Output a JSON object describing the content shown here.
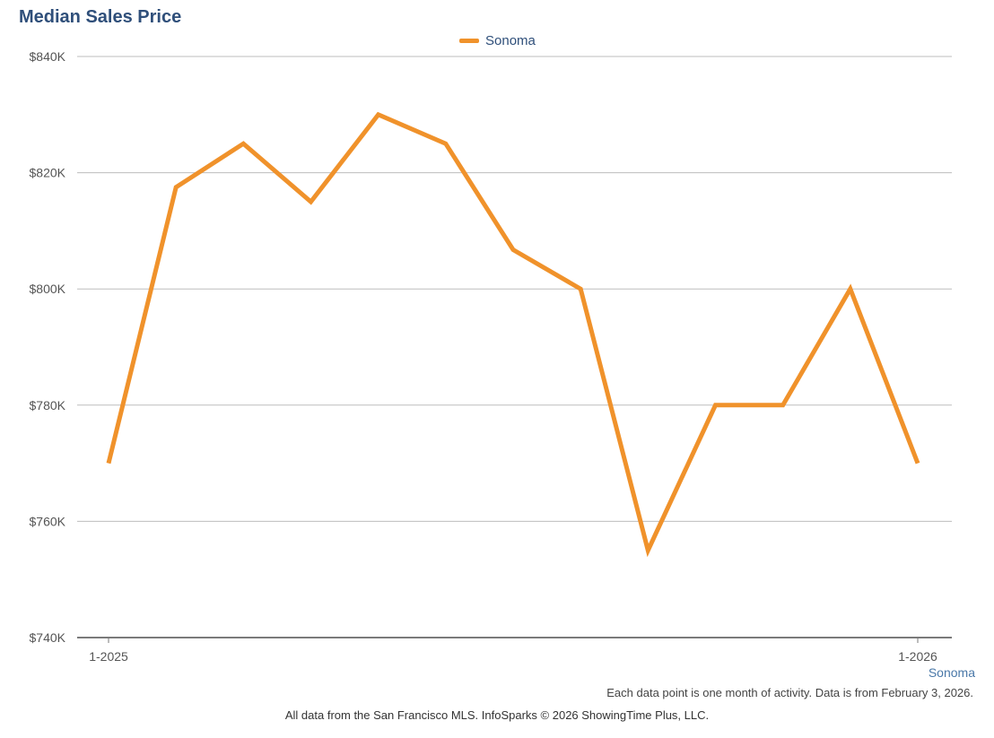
{
  "chart_data": {
    "type": "line",
    "title": "Median Sales Price",
    "x": [
      "1-2025",
      "2-2025",
      "3-2025",
      "4-2025",
      "5-2025",
      "6-2025",
      "7-2025",
      "8-2025",
      "9-2025",
      "10-2025",
      "11-2025",
      "12-2025",
      "1-2026"
    ],
    "x_tick_labels": [
      "1-2025",
      "1-2026"
    ],
    "series": [
      {
        "name": "Sonoma",
        "color": "#f0922b",
        "values": [
          770000,
          817500,
          825000,
          815000,
          830000,
          825000,
          806750,
          800000,
          755000,
          780000,
          780000,
          800000,
          770000
        ]
      }
    ],
    "ylim": [
      740000,
      840000
    ],
    "y_ticks": [
      740000,
      760000,
      780000,
      800000,
      820000,
      840000
    ],
    "y_tick_labels": [
      "$740K",
      "$760K",
      "$780K",
      "$800K",
      "$820K",
      "$840K"
    ],
    "grid": true,
    "legend_position": "top-center"
  },
  "region_label": "Sonoma",
  "note": "Each data point is one month of activity. Data is from February 3, 2026.",
  "footer": "All data from the San Francisco MLS. InfoSparks © 2026 ShowingTime Plus, LLC."
}
